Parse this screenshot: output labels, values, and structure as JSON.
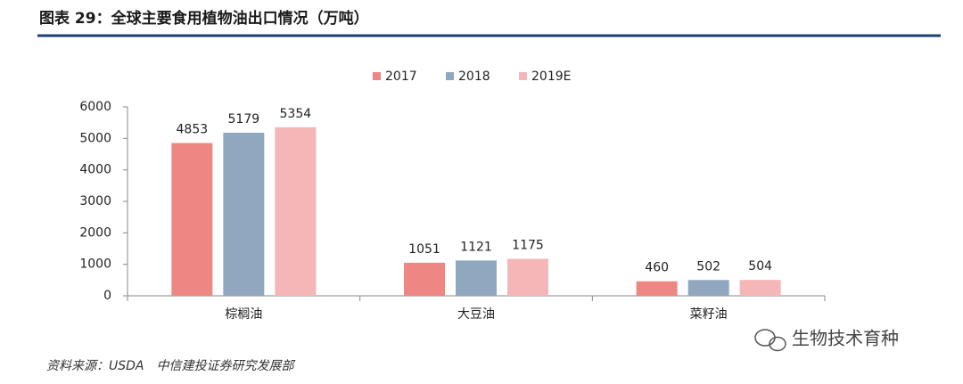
{
  "chart_data": {
    "type": "bar",
    "title": "图表 29：全球主要食用植物油出口情况（万吨）",
    "categories": [
      "棕榈油",
      "大豆油",
      "菜籽油"
    ],
    "series": [
      {
        "name": "2017",
        "color": "#ee8683",
        "values": [
          4853,
          1051,
          460
        ]
      },
      {
        "name": "2018",
        "color": "#8fa8bf",
        "values": [
          5179,
          1121,
          502
        ]
      },
      {
        "name": "2019E",
        "color": "#f4b6b6",
        "values": [
          5354,
          1175,
          504
        ]
      }
    ],
    "ylim": [
      0,
      6000
    ],
    "yticks": [
      0,
      1000,
      2000,
      3000,
      4000,
      5000,
      6000
    ],
    "grid": false,
    "legend": "top",
    "source": "资料来源：USDA　中信建投证券研究发展部",
    "watermark": "生物技术育种"
  }
}
